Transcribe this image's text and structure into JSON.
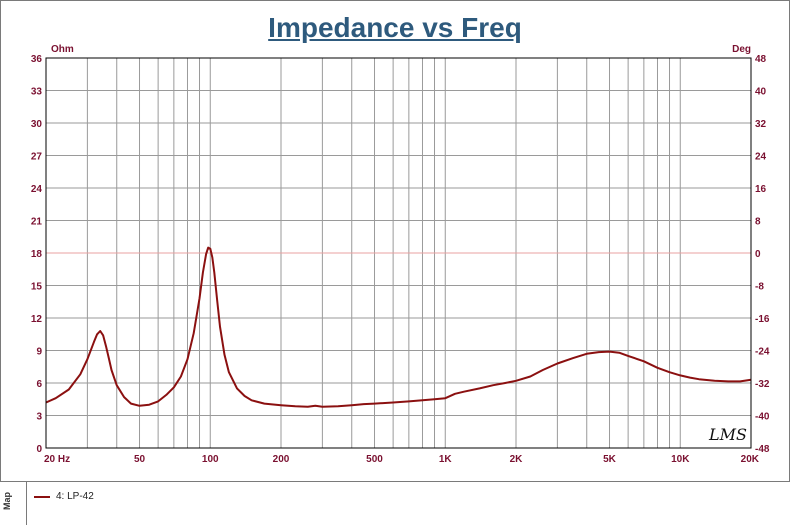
{
  "chart_data": {
    "type": "line",
    "title": "Impedance vs Freq",
    "x_scale": "log",
    "xlim": [
      20,
      20000
    ],
    "ylim_left": [
      0,
      36
    ],
    "ylim_right": [
      -48,
      48
    ],
    "left_unit": "Ohm",
    "right_unit": "Deg",
    "grid": true,
    "x_ticks": [
      {
        "value": 20,
        "label": "20  Hz"
      },
      {
        "value": 50,
        "label": "50"
      },
      {
        "value": 100,
        "label": "100"
      },
      {
        "value": 200,
        "label": "200"
      },
      {
        "value": 500,
        "label": "500"
      },
      {
        "value": 1000,
        "label": "1K"
      },
      {
        "value": 2000,
        "label": "2K"
      },
      {
        "value": 5000,
        "label": "5K"
      },
      {
        "value": 10000,
        "label": "10K"
      },
      {
        "value": 20000,
        "label": "20K"
      }
    ],
    "y_ticks_left": [
      0,
      3,
      6,
      9,
      12,
      15,
      18,
      21,
      24,
      27,
      30,
      33,
      36
    ],
    "y_ticks_right": [
      -48,
      -40,
      -32,
      -24,
      -16,
      -8,
      0,
      8,
      16,
      24,
      32,
      40,
      48
    ],
    "watermark": "LMS",
    "series": [
      {
        "name": "4: LP-42",
        "color": "#8b1010",
        "x": [
          20,
          22,
          25,
          28,
          30,
          32,
          33,
          34,
          35,
          36,
          37,
          38,
          40,
          43,
          46,
          50,
          55,
          60,
          65,
          70,
          75,
          80,
          85,
          90,
          93,
          96,
          98,
          100,
          102,
          104,
          107,
          110,
          115,
          120,
          130,
          140,
          150,
          170,
          200,
          230,
          260,
          280,
          300,
          350,
          400,
          450,
          500,
          600,
          700,
          800,
          900,
          1000,
          1100,
          1200,
          1400,
          1600,
          1800,
          2000,
          2300,
          2600,
          3000,
          3500,
          4000,
          4500,
          5000,
          5500,
          6000,
          7000,
          8000,
          9000,
          10000,
          11000,
          12000,
          14000,
          16000,
          18000,
          20000
        ],
        "y": [
          4.2,
          4.6,
          5.4,
          6.8,
          8.2,
          9.8,
          10.5,
          10.8,
          10.4,
          9.4,
          8.3,
          7.2,
          5.8,
          4.7,
          4.1,
          3.9,
          4.0,
          4.3,
          4.9,
          5.6,
          6.6,
          8.2,
          10.6,
          13.8,
          16.2,
          17.9,
          18.5,
          18.4,
          17.6,
          16.2,
          13.6,
          11.2,
          8.6,
          7.0,
          5.5,
          4.8,
          4.4,
          4.1,
          3.95,
          3.85,
          3.8,
          3.9,
          3.8,
          3.85,
          3.95,
          4.05,
          4.1,
          4.2,
          4.3,
          4.4,
          4.5,
          4.6,
          5.0,
          5.2,
          5.5,
          5.8,
          6.0,
          6.2,
          6.6,
          7.2,
          7.8,
          8.3,
          8.7,
          8.85,
          8.9,
          8.8,
          8.5,
          8.0,
          7.4,
          7.0,
          6.7,
          6.5,
          6.35,
          6.2,
          6.15,
          6.15,
          6.3
        ]
      }
    ]
  },
  "legend": {
    "tab_label": "Map",
    "entries": [
      {
        "label": "4: LP-42"
      }
    ]
  }
}
